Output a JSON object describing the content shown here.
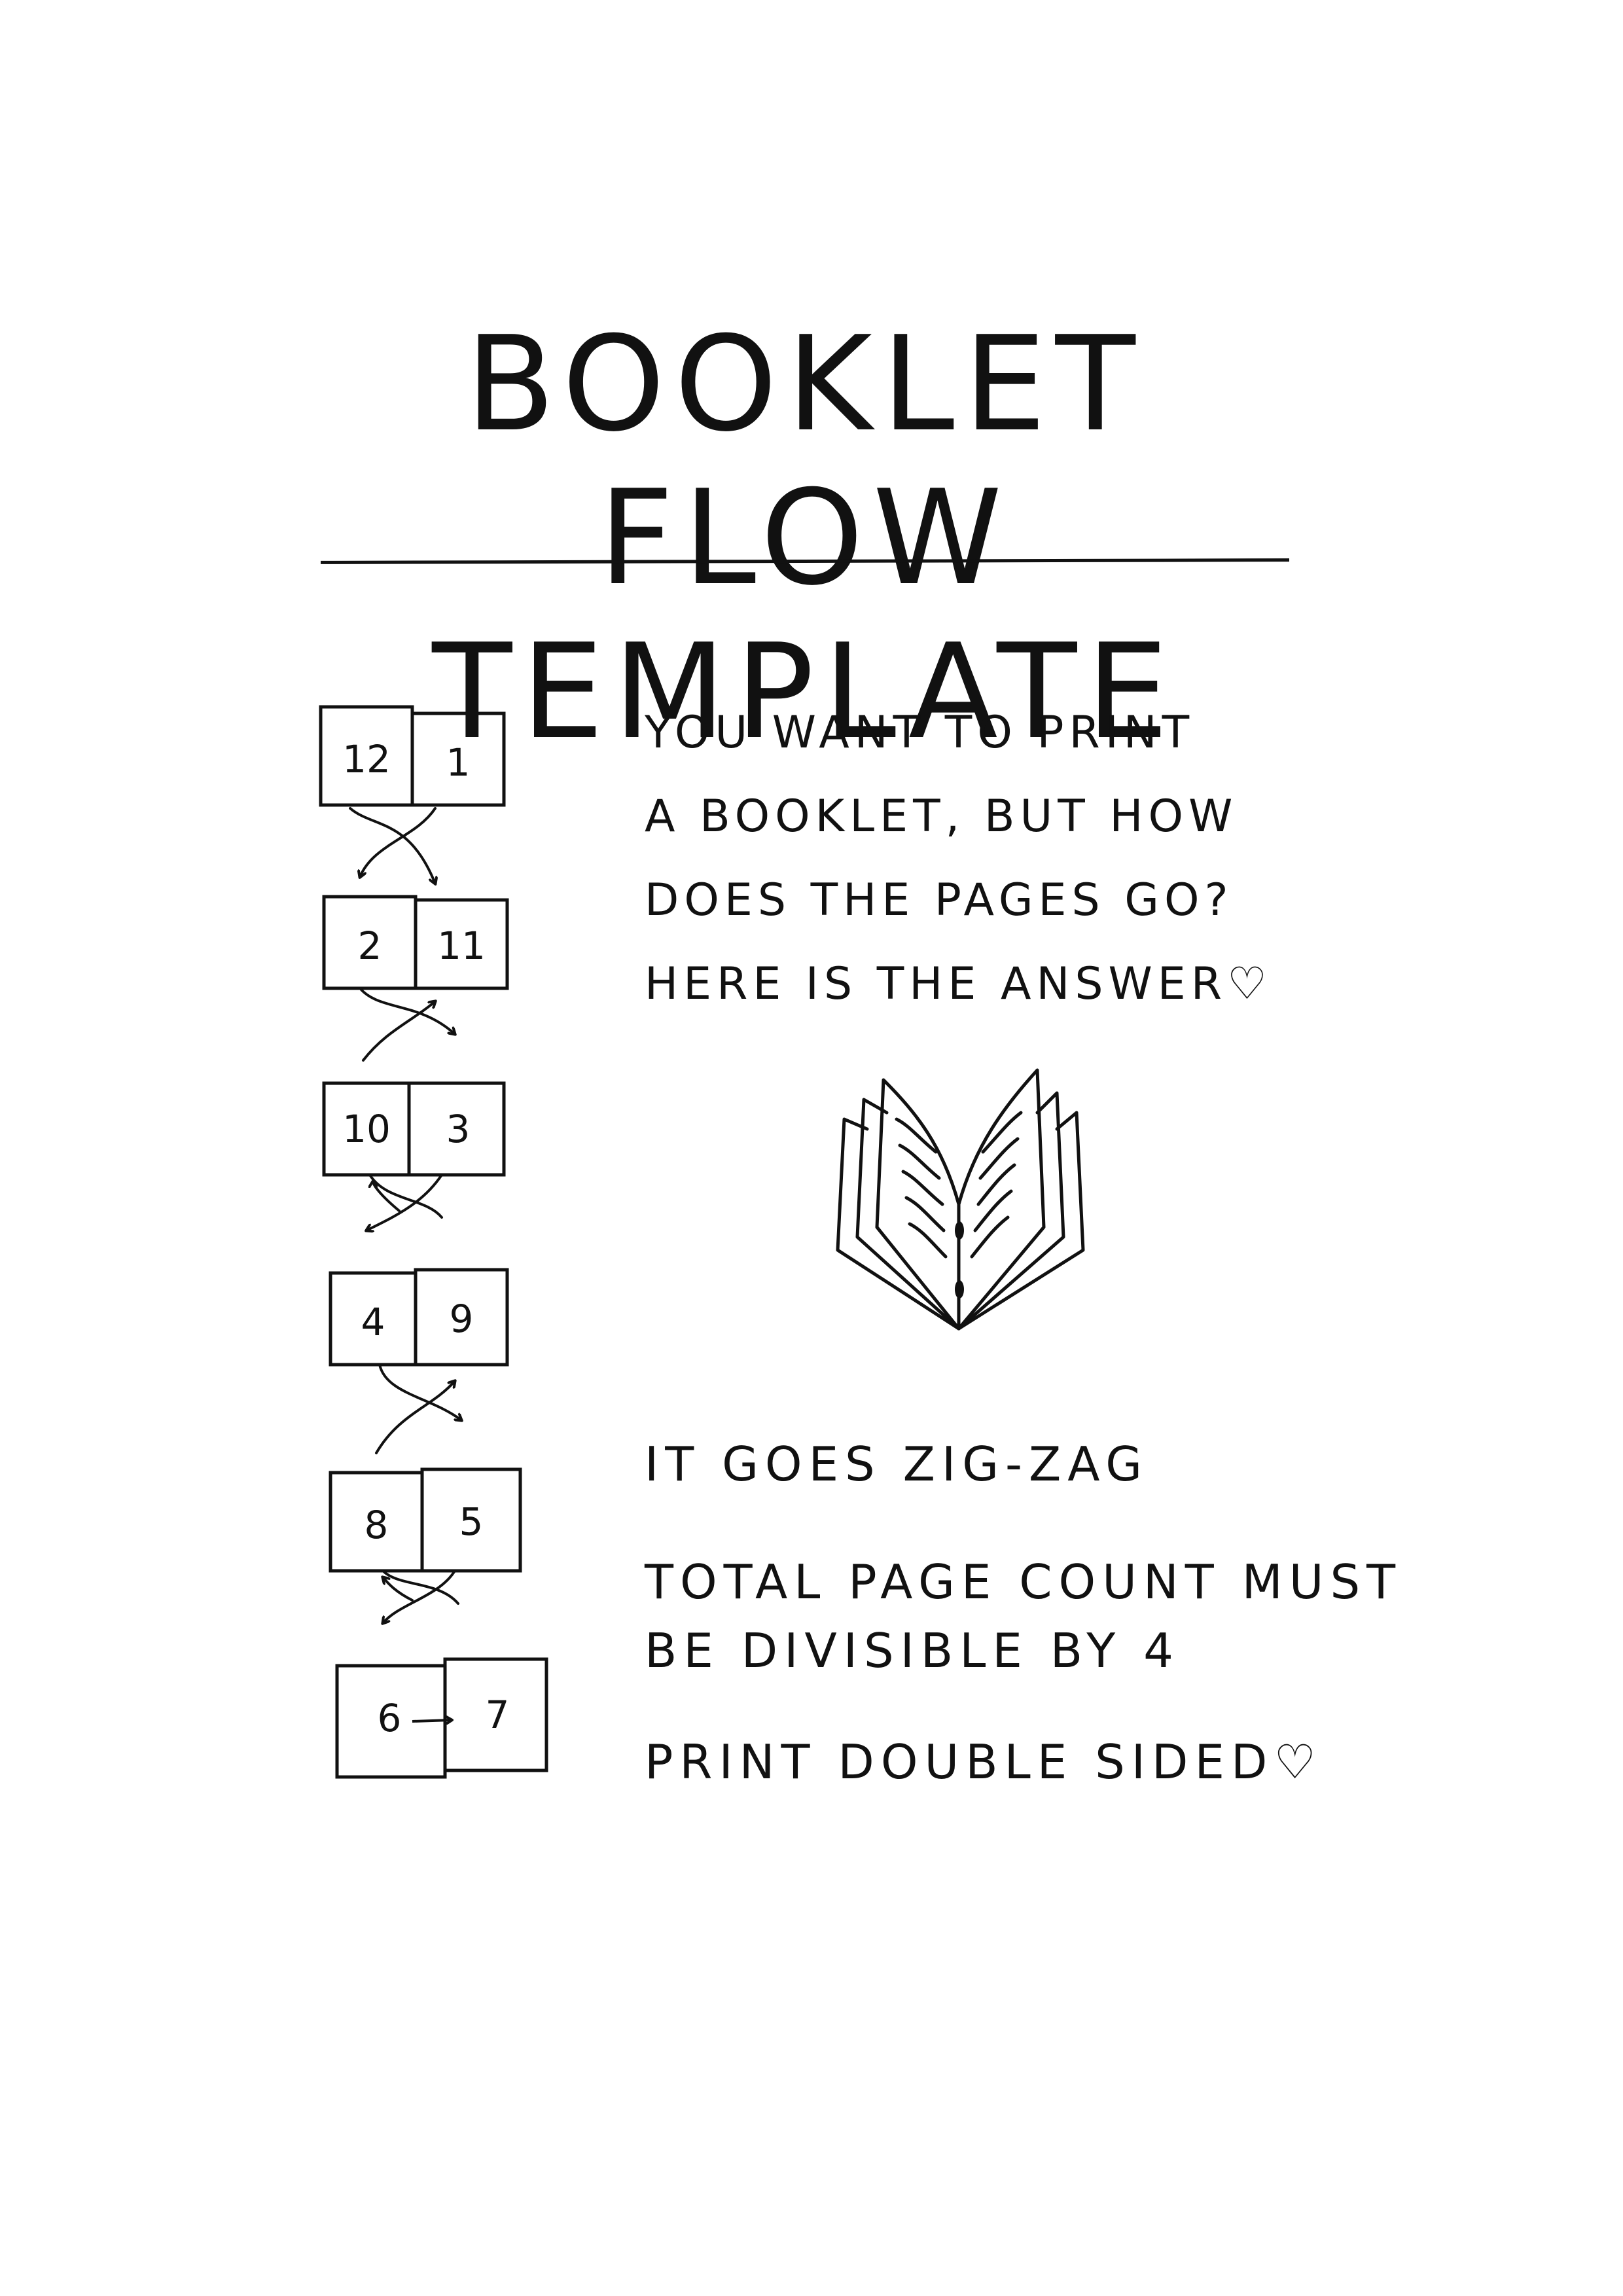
{
  "title": {
    "line1": "BOOKLET FLOW",
    "line2": "TEMPLATE"
  },
  "intro": [
    "YOU WANT TO PRINT",
    "A BOOKLET, BUT HOW",
    "DOES THE PAGES GO?",
    "HERE IS THE ANSWER♡"
  ],
  "spreads": [
    {
      "left": "12",
      "right": "1"
    },
    {
      "left": "2",
      "right": "11"
    },
    {
      "left": "10",
      "right": "3"
    },
    {
      "left": "4",
      "right": "9"
    },
    {
      "left": "8",
      "right": "5"
    },
    {
      "left": "6",
      "right": "7"
    }
  ],
  "notes": [
    "IT GOES ZIG-ZAG",
    "TOTAL PAGE COUNT MUST",
    "BE DIVISIBLE BY 4",
    "PRINT DOUBLE SIDED♡"
  ],
  "icons": {
    "open_book": "open-book-icon",
    "flow_arrow": "crossing-arrows-icon"
  },
  "colors": {
    "ink": "#111111",
    "paper": "#ffffff"
  }
}
